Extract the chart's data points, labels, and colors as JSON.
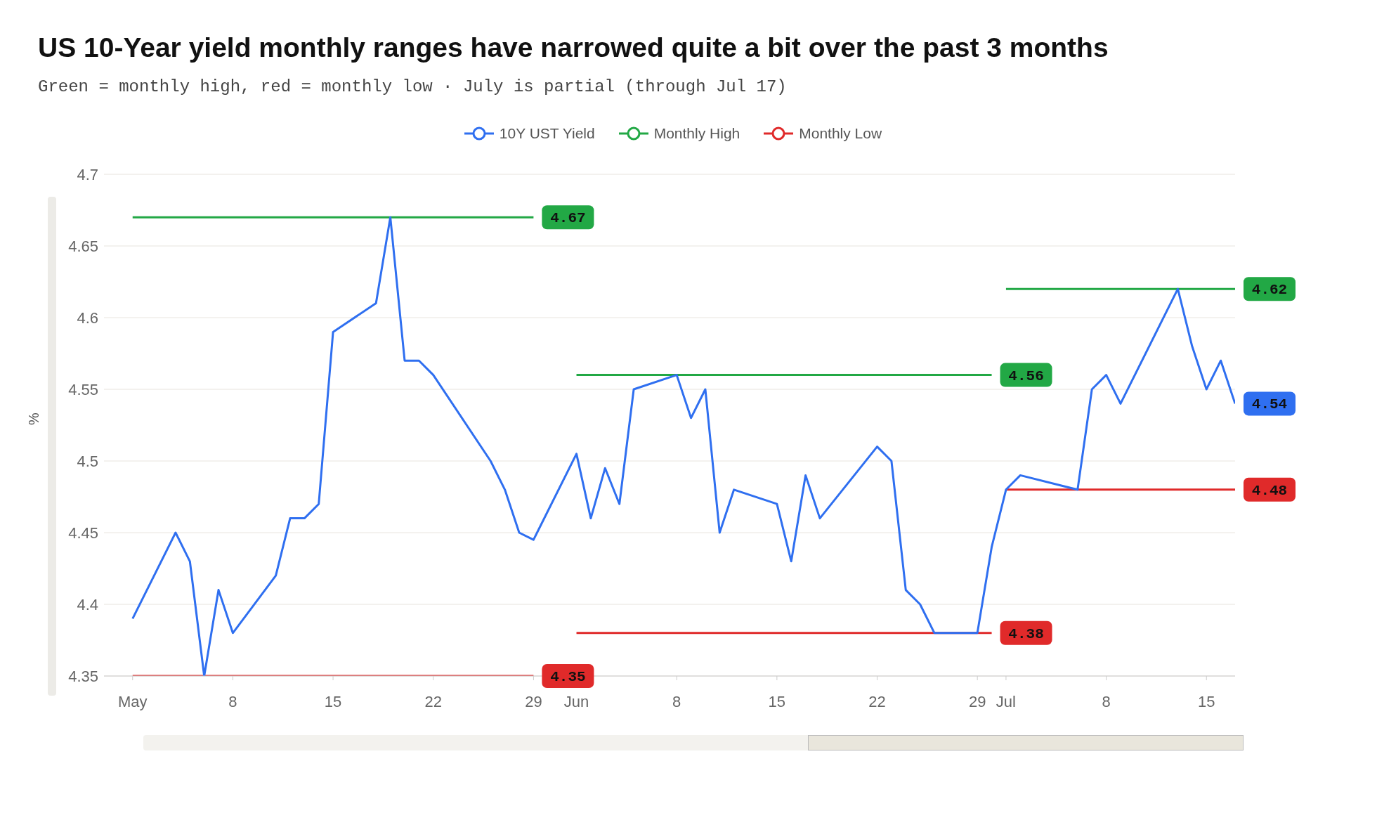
{
  "chart_data": {
    "type": "line",
    "title": "US 10-Year yield monthly ranges have narrowed quite a bit over the past 3 months",
    "subtitle": "Green = monthly high, red = monthly low · July is partial (through Jul 17)",
    "ylabel": "%",
    "legend": "top",
    "grid": "y",
    "ylim": [
      4.35,
      4.7
    ],
    "yticks": [
      4.35,
      4.4,
      4.45,
      4.5,
      4.55,
      4.6,
      4.65,
      4.7
    ],
    "xlim": [
      "--04-29",
      "--07-17"
    ],
    "xticks": [
      {
        "value": "--05-01",
        "label": "May"
      },
      {
        "value": "--05-08",
        "label": "8"
      },
      {
        "value": "--05-15",
        "label": "15"
      },
      {
        "value": "--05-22",
        "label": "22"
      },
      {
        "value": "--05-29",
        "label": "29"
      },
      {
        "value": "--06-01",
        "label": "Jun"
      },
      {
        "value": "--06-08",
        "label": "8"
      },
      {
        "value": "--06-15",
        "label": "15"
      },
      {
        "value": "--06-22",
        "label": "22"
      },
      {
        "value": "--06-29",
        "label": "29"
      },
      {
        "value": "--07-01",
        "label": "Jul"
      },
      {
        "value": "--07-08",
        "label": "8"
      },
      {
        "value": "--07-15",
        "label": "15"
      }
    ],
    "series": [
      {
        "name": "10Y UST Yield",
        "color": "#2f6ff0",
        "x": [
          "--05-01",
          "--05-04",
          "--05-05",
          "--05-06",
          "--05-07",
          "--05-08",
          "--05-11",
          "--05-12",
          "--05-13",
          "--05-14",
          "--05-15",
          "--05-18",
          "--05-19",
          "--05-20",
          "--05-21",
          "--05-22",
          "--05-26",
          "--05-27",
          "--05-28",
          "--05-29",
          "--06-01",
          "--06-02",
          "--06-03",
          "--06-04",
          "--06-05",
          "--06-08",
          "--06-09",
          "--06-10",
          "--06-11",
          "--06-12",
          "--06-15",
          "--06-16",
          "--06-17",
          "--06-18",
          "--06-22",
          "--06-23",
          "--06-24",
          "--06-25",
          "--06-26",
          "--06-29",
          "--06-30",
          "--07-01",
          "--07-02",
          "--07-06",
          "--07-07",
          "--07-08",
          "--07-09",
          "--07-13",
          "--07-14",
          "--07-15",
          "--07-16",
          "--07-17"
        ],
        "values": [
          4.39,
          4.45,
          4.43,
          4.35,
          4.41,
          4.38,
          4.42,
          4.46,
          4.46,
          4.47,
          4.59,
          4.61,
          4.67,
          4.57,
          4.57,
          4.56,
          4.5,
          4.48,
          4.45,
          4.445,
          4.505,
          4.46,
          4.495,
          4.47,
          4.55,
          4.56,
          4.53,
          4.55,
          4.45,
          4.48,
          4.47,
          4.43,
          4.49,
          4.46,
          4.51,
          4.5,
          4.41,
          4.4,
          4.38,
          4.38,
          4.44,
          4.48,
          4.49,
          4.48,
          4.55,
          4.56,
          4.54,
          4.62,
          4.58,
          4.55,
          4.57,
          4.54
        ],
        "value_labels": [
          null,
          null,
          null,
          null,
          null,
          null,
          null,
          null,
          null,
          null,
          null,
          null,
          null,
          null,
          null,
          null,
          null,
          null,
          null,
          null,
          null,
          null,
          null,
          null,
          null,
          null,
          null,
          null,
          null,
          null,
          null,
          null,
          null,
          null,
          null,
          null,
          null,
          null,
          null,
          null,
          null,
          null,
          null,
          null,
          null,
          null,
          null,
          null,
          null,
          null,
          null,
          "4.54"
        ]
      },
      {
        "name": "Monthly High",
        "color": "#22a845",
        "x": [
          "--05-01",
          "--05-29",
          "--05-31",
          "--06-01",
          "--06-30",
          "--06-30T18:00",
          "--07-01",
          "--07-17"
        ],
        "values": [
          4.67,
          4.67,
          null,
          4.56,
          4.56,
          null,
          4.62,
          4.62
        ],
        "value_labels": [
          null,
          "4.67",
          null,
          null,
          "4.56",
          null,
          null,
          "4.62"
        ]
      },
      {
        "name": "Monthly Low",
        "color": "#e02a2a",
        "x": [
          "--05-01",
          "--05-29",
          "--05-31",
          "--06-01",
          "--06-30",
          "--06-30T18:00",
          "--07-01",
          "--07-17"
        ],
        "values": [
          4.35,
          4.35,
          null,
          4.38,
          4.38,
          null,
          4.48,
          4.48
        ],
        "value_labels": [
          null,
          "4.35",
          null,
          null,
          "4.38",
          null,
          null,
          "4.48"
        ]
      }
    ]
  }
}
